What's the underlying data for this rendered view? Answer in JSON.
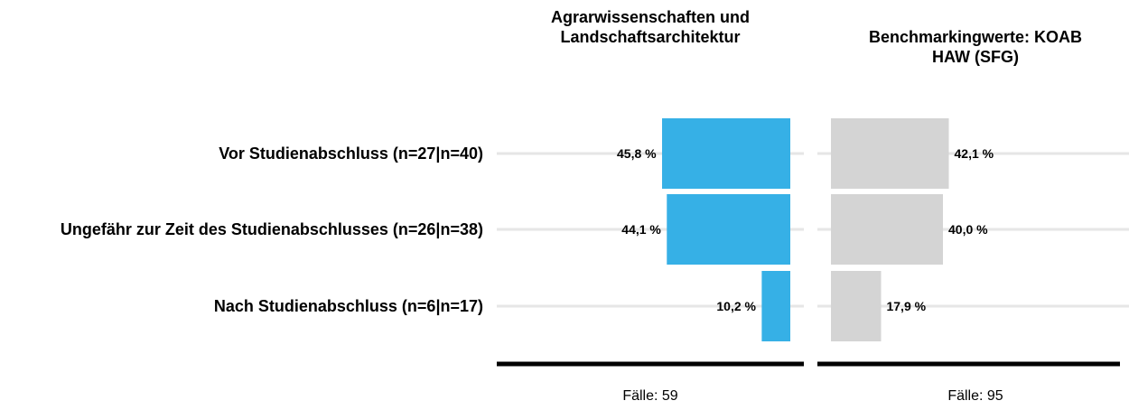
{
  "chart_data": {
    "type": "bar",
    "categories": [
      "Vor Studienabschluss (n=27|n=40)",
      "Ungefähr zur Zeit des Studienabschlusses (n=26|n=38)",
      "Nach Studienabschluss (n=6|n=17)"
    ],
    "series": [
      {
        "name": "Agrarwissenschaften und Landschaftsarchitektur",
        "color": "#36b0e6",
        "values": [
          45.8,
          44.1,
          10.2
        ],
        "value_labels": [
          "45,8 %",
          "44,1 %",
          "10,2 %"
        ],
        "note": "Fälle: 59"
      },
      {
        "name": "Benchmarkingwerte: KOAB HAW (SFG)",
        "color": "#d4d4d4",
        "values": [
          42.1,
          40.0,
          17.9
        ],
        "value_labels": [
          "42,1 %",
          "40,0 %",
          "17,9 %"
        ],
        "note": "Fälle: 95"
      }
    ]
  }
}
